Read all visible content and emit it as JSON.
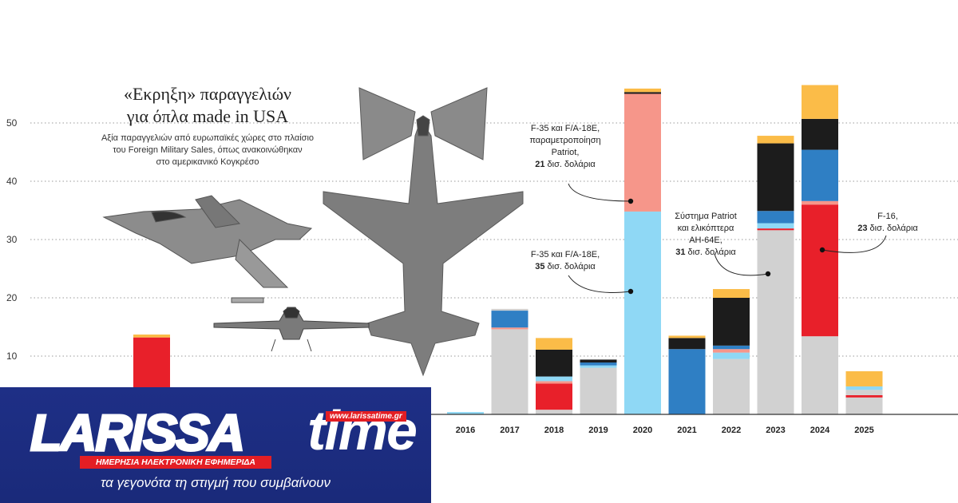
{
  "title": [
    "«Εκρηξη» παραγγελιών",
    "για όπλα made in USA"
  ],
  "subtitle": [
    "Αξία παραγγελιών από ευρωπαϊκές χώρες στο πλαίσιο",
    "του Foreign Military Sales, όπως ανακοινώθηκαν",
    "στο αμερικανικό Κογκρέσο"
  ],
  "annotations": [
    {
      "lines": [
        "F-35 και F/A-18E,",
        "παραμετροποίηση",
        "Patriot,"
      ],
      "bold": "21",
      "tail": " δισ. δολάρια"
    },
    {
      "lines": [
        "F-35 και F/A-18E,"
      ],
      "bold": "35",
      "tail": " δισ. δολάρια"
    },
    {
      "lines": [
        "Σύστημα Patriot",
        "και ελικόπτερα",
        "AH-64E,"
      ],
      "bold": "31",
      "tail": " δισ. δολάρια"
    },
    {
      "lines": [
        "F-16,"
      ],
      "bold": "23",
      "tail": " δισ. δολάρια"
    }
  ],
  "logo": {
    "name": "LARISSA",
    "time": "time",
    "url": "www.larissatime.gr",
    "red_line": "ΗΜΕΡΗΣΙΑ ΗΛΕΚΤΡΟΝΙΚΗ ΕΦΗΜΕΡΙΔΑ",
    "tagline": "τα γεγονότα τη στιγμή που συμβαίνουν"
  },
  "chart_data": {
    "type": "bar",
    "stacked": true,
    "ylim": [
      0,
      57
    ],
    "yticks": [
      10,
      20,
      30,
      40,
      50
    ],
    "grid": true,
    "categories": [
      "2016",
      "2017",
      "2018",
      "2019",
      "2020",
      "2021",
      "2022",
      "2023",
      "2024",
      "2025"
    ],
    "hidden_bars": [
      {
        "value": 13.2,
        "color": "#e8202a"
      },
      {
        "value": 0.5,
        "color": "#fbbc48"
      }
    ],
    "bars": [
      [
        {
          "value": 0.4,
          "color": "#8fd8f5"
        }
      ],
      [
        {
          "value": 14.6,
          "color": "#d1d1d1"
        },
        {
          "value": 0.3,
          "color": "#f6968a"
        },
        {
          "value": 2.9,
          "color": "#2f7fc4"
        },
        {
          "value": 0.3,
          "color": "#d1d1d1"
        }
      ],
      [
        {
          "value": 0.8,
          "color": "#d1d1d1"
        },
        {
          "value": 4.5,
          "color": "#e8202a"
        },
        {
          "value": 0.4,
          "color": "#f6968a"
        },
        {
          "value": 0.8,
          "color": "#8fd8f5"
        },
        {
          "value": 4.6,
          "color": "#1c1c1c"
        },
        {
          "value": 2.0,
          "color": "#fbbc48"
        }
      ],
      [
        {
          "value": 8.0,
          "color": "#d1d1d1"
        },
        {
          "value": 0.4,
          "color": "#8fd8f5"
        },
        {
          "value": 0.5,
          "color": "#2f7fc4"
        },
        {
          "value": 0.5,
          "color": "#1c1c1c"
        }
      ],
      [
        {
          "value": 34.8,
          "color": "#8fd8f5"
        },
        {
          "value": 20.2,
          "color": "#f6968a"
        },
        {
          "value": 0.3,
          "color": "#1c1c1c"
        },
        {
          "value": 0.6,
          "color": "#fbbc48"
        }
      ],
      [
        {
          "value": 11.2,
          "color": "#2f7fc4"
        },
        {
          "value": 1.9,
          "color": "#1c1c1c"
        },
        {
          "value": 0.4,
          "color": "#fbbc48"
        }
      ],
      [
        {
          "value": 9.5,
          "color": "#d1d1d1"
        },
        {
          "value": 1.1,
          "color": "#8fd8f5"
        },
        {
          "value": 0.6,
          "color": "#f6968a"
        },
        {
          "value": 0.6,
          "color": "#2f7fc4"
        },
        {
          "value": 8.2,
          "color": "#1c1c1c"
        },
        {
          "value": 1.5,
          "color": "#fbbc48"
        }
      ],
      [
        {
          "value": 31.6,
          "color": "#d1d1d1"
        },
        {
          "value": 0.3,
          "color": "#e8202a"
        },
        {
          "value": 0.9,
          "color": "#8fd8f5"
        },
        {
          "value": 2.1,
          "color": "#2f7fc4"
        },
        {
          "value": 11.6,
          "color": "#1c1c1c"
        },
        {
          "value": 1.3,
          "color": "#fbbc48"
        }
      ],
      [
        {
          "value": 13.4,
          "color": "#d1d1d1"
        },
        {
          "value": 22.6,
          "color": "#e8202a"
        },
        {
          "value": 0.6,
          "color": "#f6968a"
        },
        {
          "value": 8.8,
          "color": "#2f7fc4"
        },
        {
          "value": 5.3,
          "color": "#1c1c1c"
        },
        {
          "value": 5.8,
          "color": "#fbbc48"
        }
      ],
      [
        {
          "value": 2.9,
          "color": "#d1d1d1"
        },
        {
          "value": 0.4,
          "color": "#e8202a"
        },
        {
          "value": 0.9,
          "color": "#d1d1d1"
        },
        {
          "value": 0.6,
          "color": "#8fd8f5"
        },
        {
          "value": 2.6,
          "color": "#fbbc48"
        }
      ]
    ]
  }
}
